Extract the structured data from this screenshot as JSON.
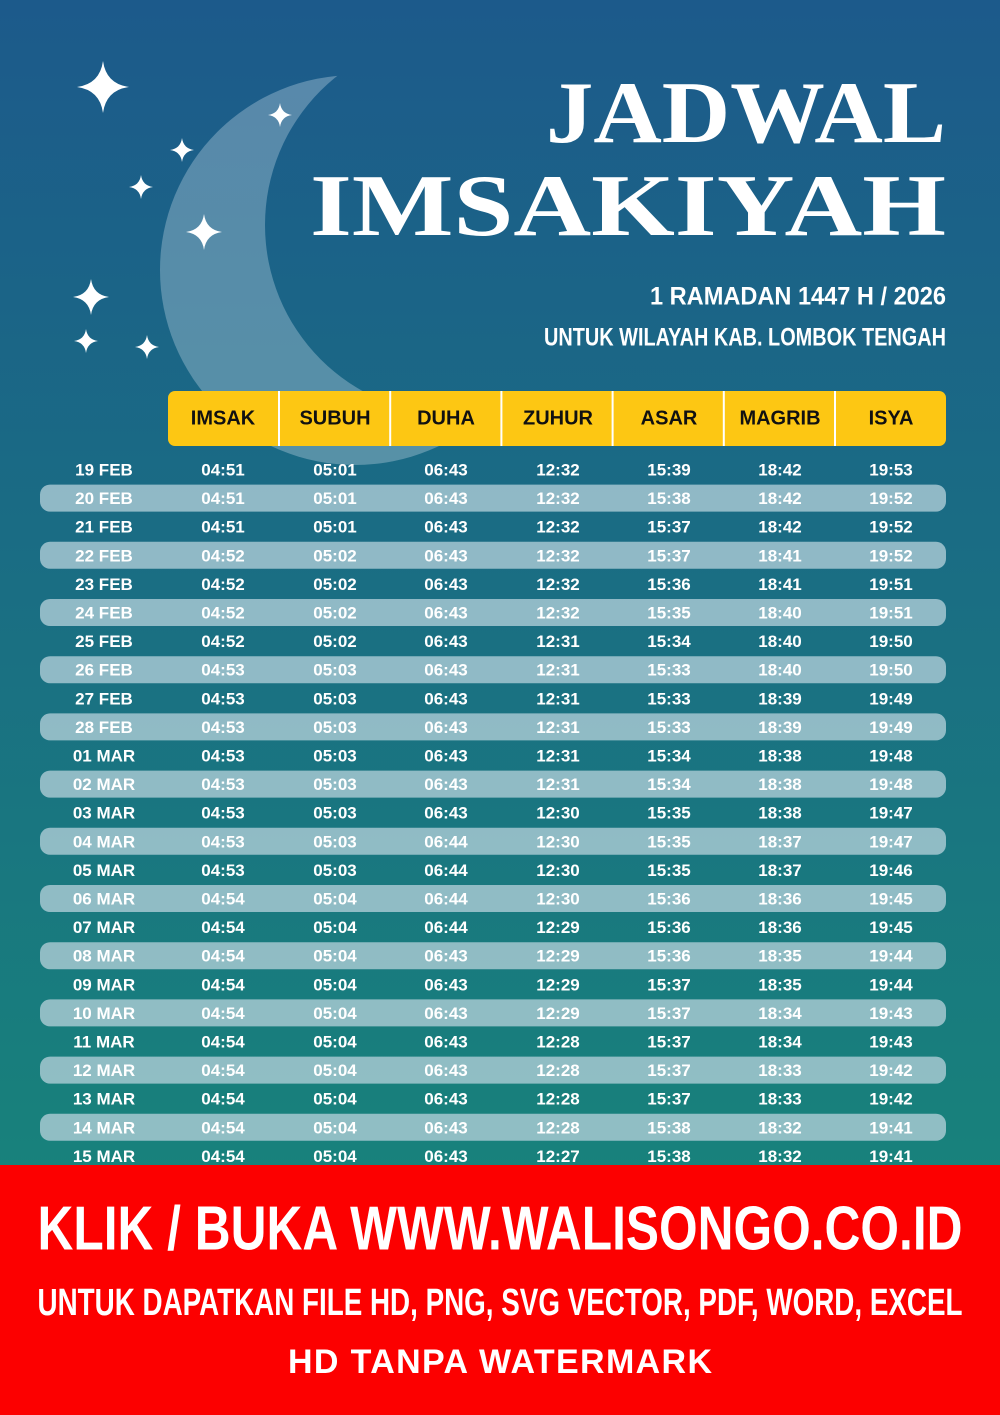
{
  "header": {
    "title": [
      "JADWAL",
      "IMSAKIYAH"
    ],
    "subtitle": "1 RAMADAN 1447 H / 2026",
    "region": "UNTUK WILAYAH KAB. LOMBOK TENGAH"
  },
  "table": {
    "columns": [
      "IMSAK",
      "SUBUH",
      "DUHA",
      "ZUHUR",
      "ASAR",
      "MAGRIB",
      "ISYA"
    ],
    "rows": [
      [
        "19 FEB",
        "04:51",
        "05:01",
        "06:43",
        "12:32",
        "15:39",
        "18:42",
        "19:53"
      ],
      [
        "20 FEB",
        "04:51",
        "05:01",
        "06:43",
        "12:32",
        "15:38",
        "18:42",
        "19:52"
      ],
      [
        "21 FEB",
        "04:51",
        "05:01",
        "06:43",
        "12:32",
        "15:37",
        "18:42",
        "19:52"
      ],
      [
        "22 FEB",
        "04:52",
        "05:02",
        "06:43",
        "12:32",
        "15:37",
        "18:41",
        "19:52"
      ],
      [
        "23 FEB",
        "04:52",
        "05:02",
        "06:43",
        "12:32",
        "15:36",
        "18:41",
        "19:51"
      ],
      [
        "24 FEB",
        "04:52",
        "05:02",
        "06:43",
        "12:32",
        "15:35",
        "18:40",
        "19:51"
      ],
      [
        "25 FEB",
        "04:52",
        "05:02",
        "06:43",
        "12:31",
        "15:34",
        "18:40",
        "19:50"
      ],
      [
        "26 FEB",
        "04:53",
        "05:03",
        "06:43",
        "12:31",
        "15:33",
        "18:40",
        "19:50"
      ],
      [
        "27 FEB",
        "04:53",
        "05:03",
        "06:43",
        "12:31",
        "15:33",
        "18:39",
        "19:49"
      ],
      [
        "28 FEB",
        "04:53",
        "05:03",
        "06:43",
        "12:31",
        "15:33",
        "18:39",
        "19:49"
      ],
      [
        "01 MAR",
        "04:53",
        "05:03",
        "06:43",
        "12:31",
        "15:34",
        "18:38",
        "19:48"
      ],
      [
        "02 MAR",
        "04:53",
        "05:03",
        "06:43",
        "12:31",
        "15:34",
        "18:38",
        "19:48"
      ],
      [
        "03 MAR",
        "04:53",
        "05:03",
        "06:43",
        "12:30",
        "15:35",
        "18:38",
        "19:47"
      ],
      [
        "04 MAR",
        "04:53",
        "05:03",
        "06:44",
        "12:30",
        "15:35",
        "18:37",
        "19:47"
      ],
      [
        "05 MAR",
        "04:53",
        "05:03",
        "06:44",
        "12:30",
        "15:35",
        "18:37",
        "19:46"
      ],
      [
        "06 MAR",
        "04:54",
        "05:04",
        "06:44",
        "12:30",
        "15:36",
        "18:36",
        "19:45"
      ],
      [
        "07 MAR",
        "04:54",
        "05:04",
        "06:44",
        "12:29",
        "15:36",
        "18:36",
        "19:45"
      ],
      [
        "08 MAR",
        "04:54",
        "05:04",
        "06:43",
        "12:29",
        "15:36",
        "18:35",
        "19:44"
      ],
      [
        "09 MAR",
        "04:54",
        "05:04",
        "06:43",
        "12:29",
        "15:37",
        "18:35",
        "19:44"
      ],
      [
        "10 MAR",
        "04:54",
        "05:04",
        "06:43",
        "12:29",
        "15:37",
        "18:34",
        "19:43"
      ],
      [
        "11 MAR",
        "04:54",
        "05:04",
        "06:43",
        "12:28",
        "15:37",
        "18:34",
        "19:43"
      ],
      [
        "12 MAR",
        "04:54",
        "05:04",
        "06:43",
        "12:28",
        "15:37",
        "18:33",
        "19:42"
      ],
      [
        "13 MAR",
        "04:54",
        "05:04",
        "06:43",
        "12:28",
        "15:37",
        "18:33",
        "19:42"
      ],
      [
        "14 MAR",
        "04:54",
        "05:04",
        "06:43",
        "12:28",
        "15:38",
        "18:32",
        "19:41"
      ],
      [
        "15 MAR",
        "04:54",
        "05:04",
        "06:43",
        "12:27",
        "15:38",
        "18:32",
        "19:41"
      ]
    ]
  },
  "footer": {
    "headline": "KLIK / BUKA WWW.WALISONGO.CO.ID",
    "formats": "UNTUK DAPATKAN FILE HD, PNG, SVG VECTOR, PDF, WORD, EXCEL",
    "note": "HD TANPA WATERMARK"
  }
}
